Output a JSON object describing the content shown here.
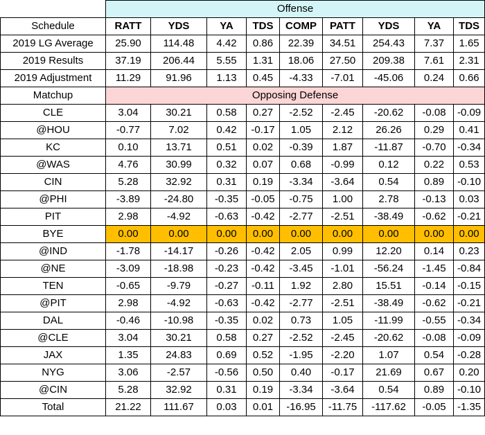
{
  "sections": {
    "offense": "Offense",
    "opposing_defense": "Opposing Defense"
  },
  "header": {
    "schedule": "Schedule",
    "columns": [
      "RATT",
      "YDS",
      "YA",
      "TDS",
      "COMP",
      "PATT",
      "YDS",
      "YA",
      "TDS"
    ]
  },
  "summary_rows": [
    {
      "label": "2019 LG Average",
      "values": [
        "25.90",
        "114.48",
        "4.42",
        "0.86",
        "22.39",
        "34.51",
        "254.43",
        "7.37",
        "1.65"
      ]
    },
    {
      "label": "2019 Results",
      "values": [
        "37.19",
        "206.44",
        "5.55",
        "1.31",
        "18.06",
        "27.50",
        "209.38",
        "7.61",
        "2.31"
      ]
    },
    {
      "label": "2019 Adjustment",
      "values": [
        "11.29",
        "91.96",
        "1.13",
        "0.45",
        "-4.33",
        "-7.01",
        "-45.06",
        "0.24",
        "0.66"
      ]
    }
  ],
  "matchup_label": "Matchup",
  "matchups": [
    {
      "label": "CLE",
      "values": [
        "3.04",
        "30.21",
        "0.58",
        "0.27",
        "-2.52",
        "-2.45",
        "-20.62",
        "-0.08",
        "-0.09"
      ]
    },
    {
      "label": "@HOU",
      "values": [
        "-0.77",
        "7.02",
        "0.42",
        "-0.17",
        "1.05",
        "2.12",
        "26.26",
        "0.29",
        "0.41"
      ]
    },
    {
      "label": "KC",
      "values": [
        "0.10",
        "13.71",
        "0.51",
        "0.02",
        "-0.39",
        "1.87",
        "-11.87",
        "-0.70",
        "-0.34"
      ]
    },
    {
      "label": "@WAS",
      "values": [
        "4.76",
        "30.99",
        "0.32",
        "0.07",
        "0.68",
        "-0.99",
        "0.12",
        "0.22",
        "0.53"
      ]
    },
    {
      "label": "CIN",
      "values": [
        "5.28",
        "32.92",
        "0.31",
        "0.19",
        "-3.34",
        "-3.64",
        "0.54",
        "0.89",
        "-0.10"
      ]
    },
    {
      "label": "@PHI",
      "values": [
        "-3.89",
        "-24.80",
        "-0.35",
        "-0.05",
        "-0.75",
        "1.00",
        "2.78",
        "-0.13",
        "0.03"
      ]
    },
    {
      "label": "PIT",
      "values": [
        "2.98",
        "-4.92",
        "-0.63",
        "-0.42",
        "-2.77",
        "-2.51",
        "-38.49",
        "-0.62",
        "-0.21"
      ]
    },
    {
      "label": "BYE",
      "bye": true,
      "values": [
        "0.00",
        "0.00",
        "0.00",
        "0.00",
        "0.00",
        "0.00",
        "0.00",
        "0.00",
        "0.00"
      ]
    },
    {
      "label": "@IND",
      "values": [
        "-1.78",
        "-14.17",
        "-0.26",
        "-0.42",
        "2.05",
        "0.99",
        "12.20",
        "0.14",
        "0.23"
      ]
    },
    {
      "label": "@NE",
      "values": [
        "-3.09",
        "-18.98",
        "-0.23",
        "-0.42",
        "-3.45",
        "-1.01",
        "-56.24",
        "-1.45",
        "-0.84"
      ]
    },
    {
      "label": "TEN",
      "values": [
        "-0.65",
        "-9.79",
        "-0.27",
        "-0.11",
        "1.92",
        "2.80",
        "15.51",
        "-0.14",
        "-0.15"
      ]
    },
    {
      "label": "@PIT",
      "values": [
        "2.98",
        "-4.92",
        "-0.63",
        "-0.42",
        "-2.77",
        "-2.51",
        "-38.49",
        "-0.62",
        "-0.21"
      ]
    },
    {
      "label": "DAL",
      "values": [
        "-0.46",
        "-10.98",
        "-0.35",
        "0.02",
        "0.73",
        "1.05",
        "-11.99",
        "-0.55",
        "-0.34"
      ]
    },
    {
      "label": "@CLE",
      "values": [
        "3.04",
        "30.21",
        "0.58",
        "0.27",
        "-2.52",
        "-2.45",
        "-20.62",
        "-0.08",
        "-0.09"
      ]
    },
    {
      "label": "JAX",
      "values": [
        "1.35",
        "24.83",
        "0.69",
        "0.52",
        "-1.95",
        "-2.20",
        "1.07",
        "0.54",
        "-0.28"
      ]
    },
    {
      "label": "NYG",
      "values": [
        "3.06",
        "-2.57",
        "-0.56",
        "0.50",
        "0.40",
        "-0.17",
        "21.69",
        "0.67",
        "0.20"
      ]
    },
    {
      "label": "@CIN",
      "values": [
        "5.28",
        "32.92",
        "0.31",
        "0.19",
        "-3.34",
        "-3.64",
        "0.54",
        "0.89",
        "-0.10"
      ]
    }
  ],
  "total_row": {
    "label": "Total",
    "values": [
      "21.22",
      "111.67",
      "0.03",
      "0.01",
      "-16.95",
      "-11.75",
      "-117.62",
      "-0.05",
      "-1.35"
    ]
  },
  "colors": {
    "offense_band": "#d4f5f7",
    "defense_band": "#fcd6d6",
    "bye_highlight": "#ffbf00"
  }
}
